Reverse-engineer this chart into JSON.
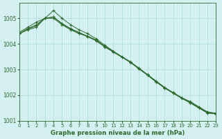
{
  "title": "Graphe pression niveau de la mer (hPa)",
  "background_color": "#d4f0f0",
  "grid_color": "#aadddd",
  "line_color": "#2d6a2d",
  "xlim": [
    0,
    23
  ],
  "ylim": [
    1001.0,
    1005.6
  ],
  "yticks": [
    1001,
    1002,
    1003,
    1004,
    1005
  ],
  "xticks": [
    0,
    1,
    2,
    3,
    4,
    5,
    6,
    7,
    8,
    9,
    10,
    11,
    12,
    13,
    14,
    15,
    16,
    17,
    18,
    19,
    20,
    21,
    22,
    23
  ],
  "series": [
    [
      1004.4,
      1004.55,
      1004.65,
      1005.0,
      1005.0,
      1004.75,
      1004.55,
      1004.4,
      1004.3,
      1004.15,
      1003.9,
      1003.7,
      1003.5,
      1003.3,
      1003.05,
      1002.8,
      1002.55,
      1002.3,
      1002.1,
      1001.9,
      1001.75,
      1001.55,
      1001.35,
      1001.3
    ],
    [
      1004.4,
      1004.6,
      1004.75,
      1005.0,
      1005.05,
      1004.8,
      1004.6,
      1004.45,
      1004.3,
      1004.15,
      1003.9,
      1003.7,
      1003.5,
      1003.3,
      1003.05,
      1002.8,
      1002.55,
      1002.3,
      1002.1,
      1001.9,
      1001.73,
      1001.52,
      1001.33,
      1001.28
    ],
    [
      1004.45,
      1004.65,
      1004.85,
      1005.0,
      1005.3,
      1005.0,
      1004.75,
      1004.55,
      1004.4,
      1004.2,
      1003.95,
      1003.72,
      1003.5,
      1003.28,
      1003.05,
      1002.78,
      1002.52,
      1002.28,
      1002.08,
      1001.88,
      1001.7,
      1001.5,
      1001.32,
      1001.28
    ],
    [
      1004.4,
      1004.58,
      1004.7,
      1005.0,
      1005.05,
      1004.78,
      1004.58,
      1004.42,
      1004.28,
      1004.12,
      1003.88,
      1003.68,
      1003.48,
      1003.28,
      1003.02,
      1002.78,
      1002.52,
      1002.28,
      1002.08,
      1001.88,
      1001.7,
      1001.5,
      1001.3,
      1001.28
    ]
  ]
}
